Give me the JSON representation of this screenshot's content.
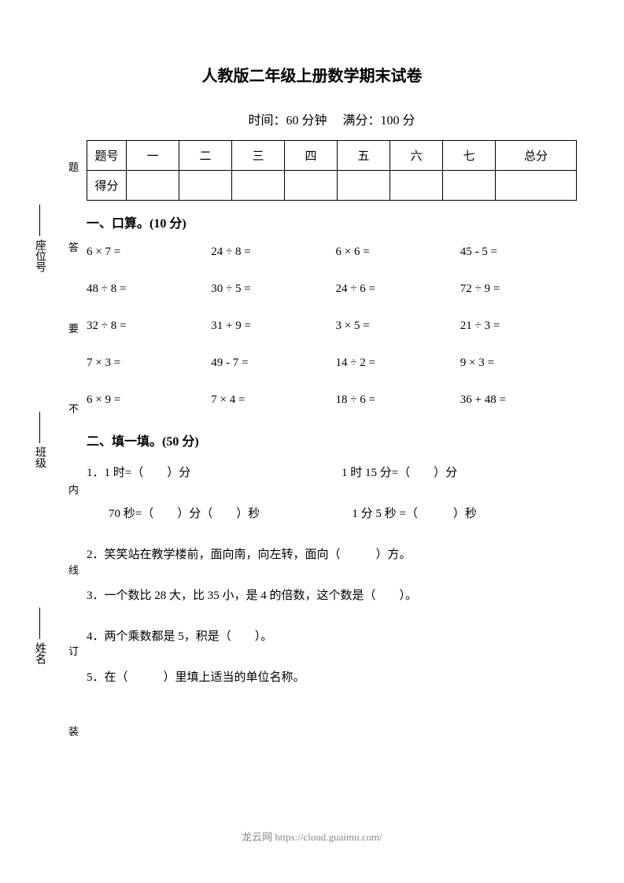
{
  "title": "人教版二年级上册数学期末试卷",
  "info": {
    "time_label": "时间：",
    "time_value": "60 分钟",
    "score_label": "满分：",
    "score_value": "100 分"
  },
  "score_table": {
    "header_label": "题号",
    "headers": [
      "一",
      "二",
      "三",
      "四",
      "五",
      "六",
      "七",
      "总分"
    ],
    "row_label": "得分"
  },
  "section1": {
    "title": "一、口算。(10 分)",
    "problems": [
      "6 × 7 =",
      "24 ÷ 8 =",
      "6 × 6 =",
      "45 - 5 =",
      "48 ÷ 8 =",
      "30 ÷ 5 =",
      "24 ÷ 6 =",
      "72 ÷ 9 =",
      "32 ÷ 8 =",
      "31 + 9 =",
      "3 × 5 =",
      "21 ÷ 3 =",
      "7 × 3 =",
      "49 - 7 =",
      "14 ÷ 2 =",
      "9 × 3 =",
      "6 × 9 =",
      "7 × 4 =",
      "18 ÷ 6 =",
      "36 + 48 ="
    ]
  },
  "section2": {
    "title": "二、填一填。(50 分)",
    "q1a": "1．1 时=（　　）分",
    "q1b": "1 时 15 分=（　　）分",
    "q1c": "70 秒=（　　）分（　　）秒",
    "q1d": "1 分 5 秒 =（　　　）秒",
    "q2": "2．笑笑站在教学楼前，面向南，向左转，面向（　　　）方。",
    "q3": "3．一个数比 28 大，比 35 小，是 4 的倍数，这个数是（　　）。",
    "q4": "4．两个乘数都是 5，积是（　　）。",
    "q5": "5．在（　　　）里填上适当的单位名称。"
  },
  "side": {
    "labels": [
      "姓名",
      "班级",
      "座位号"
    ],
    "chars": [
      "题",
      "答",
      "要",
      "不",
      "内",
      "线",
      "订",
      "装"
    ]
  },
  "footer": "龙云网 https://cloud.guaimu.com/"
}
